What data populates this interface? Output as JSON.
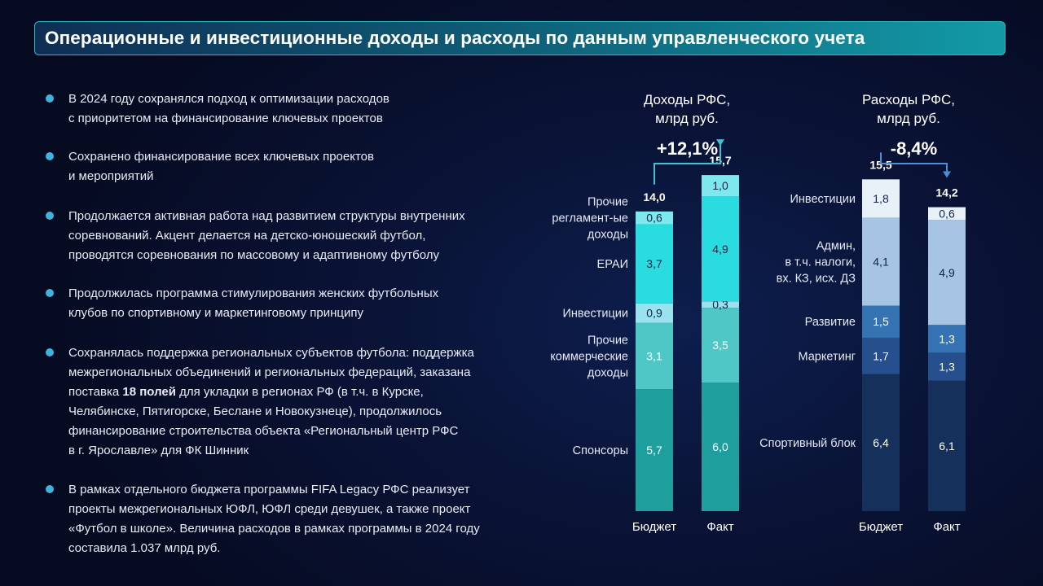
{
  "title": "Операционные и инвестиционные доходы и расходы по данным управленческого учета",
  "bullets": [
    {
      "lines": [
        "В 2024 году сохранялся подход к оптимизации расходов",
        "с приоритетом на финансирование ключевых проектов"
      ]
    },
    {
      "lines": [
        "Сохранено финансирование всех ключевых проектов",
        "и мероприятий"
      ]
    },
    {
      "lines": [
        "Продолжается активная работа над развитием структуры внутренних",
        "соревнований. Акцент делается на детско-юношеский футбол,",
        "проводятся соревнования по массовому и адаптивному футболу"
      ]
    },
    {
      "lines": [
        "Продолжилась программа стимулирования женских футбольных",
        "клубов по спортивному и маркетинговому принципу"
      ]
    },
    {
      "lines": [
        "Сохранялась поддержка региональных субъектов футбола: поддержка",
        "межрегиональных объединений и региональных федераций, заказана"
      ],
      "rich_line": {
        "before": "поставка ",
        "bold": "18 полей",
        "after": " для укладки в регионах РФ (в т.ч. в Курске,"
      },
      "lines_after": [
        "Челябинске, Пятигорске, Беслане и Новокузнеце), продолжилось",
        "финансирование строительства объекта «Региональный центр РФС",
        "в г. Ярославле» для ФК Шинник"
      ]
    },
    {
      "lines": [
        "В рамках отдельного бюджета программы FIFA Legacy РФС реализует",
        "проекты межрегиональных ЮФЛ, ЮФЛ среди девушек, а также проект",
        "«Футбол в школе». Величина расходов в рамках программы в 2024 году",
        "составила 1.037 млрд руб."
      ]
    }
  ],
  "chart_data": [
    {
      "type": "bar",
      "stacked": true,
      "title": [
        "Доходы РФС,",
        "млрд руб."
      ],
      "change_label": "+12,1%",
      "categories": [
        "Бюджет",
        "Факт"
      ],
      "totals": [
        "14,0",
        "15,7"
      ],
      "series": [
        {
          "name": "Спонсоры",
          "values": [
            5.7,
            6.0
          ],
          "labels": [
            "5,7",
            "6,0"
          ],
          "color": "#1f9e9e",
          "text_color": "#ffffff"
        },
        {
          "name": "Прочие коммерческие доходы",
          "name_lines": [
            "Прочие",
            "коммерческие",
            "доходы"
          ],
          "values": [
            3.1,
            3.5
          ],
          "labels": [
            "3,1",
            "3,5"
          ],
          "color": "#4fc7c7",
          "text_color": "#ffffff"
        },
        {
          "name": "Инвестиции",
          "values": [
            0.9,
            0.3
          ],
          "labels": [
            "0,9",
            "0,3"
          ],
          "color": "#9ae2ee",
          "text_color": "#0d2248"
        },
        {
          "name": "ЕРАИ",
          "values": [
            3.7,
            4.9
          ],
          "labels": [
            "3,7",
            "4,9"
          ],
          "color": "#2adbe0",
          "text_color": "#0d2248"
        },
        {
          "name": "Прочие регламент-ые доходы",
          "name_lines": [
            "Прочие",
            "регламент-ые",
            "доходы"
          ],
          "values": [
            0.6,
            1.0
          ],
          "labels": [
            "0,6",
            "1,0"
          ],
          "color": "#7de9ee",
          "text_color": "#0d2248"
        }
      ]
    },
    {
      "type": "bar",
      "stacked": true,
      "title": [
        "Расходы РФС,",
        "млрд руб."
      ],
      "change_label": "-8,4%",
      "categories": [
        "Бюджет",
        "Факт"
      ],
      "totals": [
        "15,5",
        "14,2"
      ],
      "series": [
        {
          "name": "Спортивный блок",
          "values": [
            6.4,
            6.1
          ],
          "labels": [
            "6,4",
            "6,1"
          ],
          "color": "#16305c",
          "text_color": "#ffffff"
        },
        {
          "name": "Маркетинг",
          "values": [
            1.7,
            1.3
          ],
          "labels": [
            "1,7",
            "1,3"
          ],
          "color": "#264f8e",
          "text_color": "#ffffff"
        },
        {
          "name": "Развитие",
          "values": [
            1.5,
            1.3
          ],
          "labels": [
            "1,5",
            "1,3"
          ],
          "color": "#3673b3",
          "text_color": "#ffffff"
        },
        {
          "name": "Админ, в т.ч. налоги, вх. КЗ, исх. ДЗ",
          "name_lines": [
            "Админ,",
            "в т.ч. налоги,",
            "вх. КЗ, исх. ДЗ"
          ],
          "values": [
            4.1,
            4.9
          ],
          "labels": [
            "4,1",
            "4,9"
          ],
          "color": "#a6c4e4",
          "text_color": "#0d2248"
        },
        {
          "name": "Инвестиции",
          "values": [
            1.8,
            0.6
          ],
          "labels": [
            "1,8",
            "0,6"
          ],
          "color": "#e8f0f8",
          "text_color": "#0d2248"
        }
      ]
    }
  ],
  "colors": {
    "accent_teal": "#2adbe0",
    "accent_blue": "#3fb3e0",
    "arrow_income": "#39c3d3",
    "arrow_expense": "#4a8fd8"
  }
}
